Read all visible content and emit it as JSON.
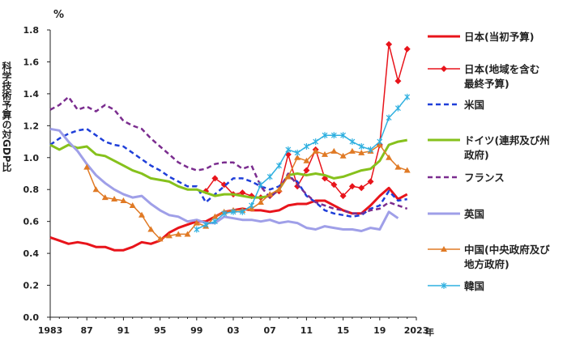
{
  "chart_data": {
    "type": "line",
    "unit_label": "%",
    "year_suffix": "年",
    "ylabel": "科学技術予算の対GDP比",
    "ylim": [
      0,
      1.8
    ],
    "y_ticks": [
      "0.0",
      "0.2",
      "0.4",
      "0.6",
      "0.8",
      "1.0",
      "1.2",
      "1.4",
      "1.6",
      "1.8"
    ],
    "x_range": [
      1983,
      2023
    ],
    "x_ticks": [
      {
        "year": 1983,
        "label": "1983"
      },
      {
        "year": 1987,
        "label": "87"
      },
      {
        "year": 1991,
        "label": "91"
      },
      {
        "year": 1995,
        "label": "95"
      },
      {
        "year": 1999,
        "label": "99"
      },
      {
        "year": 2003,
        "label": "03"
      },
      {
        "year": 2007,
        "label": "07"
      },
      {
        "year": 2011,
        "label": "11"
      },
      {
        "year": 2015,
        "label": "15"
      },
      {
        "year": 2019,
        "label": "19"
      },
      {
        "year": 2023,
        "label": "2023"
      }
    ],
    "grid": false,
    "legend_position": "right",
    "series": [
      {
        "name_lines": [
          "日本(当初予算)"
        ],
        "color": "#e8141b",
        "style": "solid",
        "marker": "none",
        "x": [
          1983,
          1984,
          1985,
          1986,
          1987,
          1988,
          1989,
          1990,
          1991,
          1992,
          1993,
          1994,
          1995,
          1996,
          1997,
          1998,
          1999,
          2000,
          2001,
          2002,
          2003,
          2004,
          2005,
          2006,
          2007,
          2008,
          2009,
          2010,
          2011,
          2012,
          2013,
          2014,
          2015,
          2016,
          2017,
          2018,
          2019,
          2020,
          2021,
          2022
        ],
        "y": [
          0.5,
          0.48,
          0.46,
          0.47,
          0.46,
          0.44,
          0.44,
          0.42,
          0.42,
          0.44,
          0.47,
          0.46,
          0.48,
          0.53,
          0.56,
          0.58,
          0.6,
          0.6,
          0.63,
          0.66,
          0.67,
          0.68,
          0.67,
          0.67,
          0.66,
          0.67,
          0.7,
          0.71,
          0.71,
          0.73,
          0.73,
          0.7,
          0.67,
          0.65,
          0.65,
          0.7,
          0.76,
          0.81,
          0.74,
          0.77
        ]
      },
      {
        "name_lines": [
          "日本(地域を含む",
          "最終予算)"
        ],
        "color": "#e8141b",
        "style": "solid",
        "marker": "diamond",
        "x": [
          2000,
          2001,
          2002,
          2003,
          2004,
          2005,
          2006,
          2007,
          2008,
          2009,
          2010,
          2011,
          2012,
          2013,
          2014,
          2015,
          2016,
          2017,
          2018,
          2019,
          2020,
          2021,
          2022
        ],
        "y": [
          0.79,
          0.87,
          0.83,
          0.77,
          0.78,
          0.76,
          0.75,
          0.76,
          0.79,
          1.02,
          0.82,
          0.92,
          1.05,
          0.87,
          0.83,
          0.76,
          0.82,
          0.81,
          0.85,
          1.08,
          1.71,
          1.48,
          1.68
        ]
      },
      {
        "name_lines": [
          "米国"
        ],
        "color": "#1f3fd9",
        "style": "dashed",
        "marker": "none",
        "x": [
          1983,
          1984,
          1985,
          1986,
          1987,
          1988,
          1989,
          1990,
          1991,
          1992,
          1993,
          1994,
          1995,
          1996,
          1997,
          1998,
          1999,
          2000,
          2001,
          2002,
          2003,
          2004,
          2005,
          2006,
          2007,
          2008,
          2009,
          2010,
          2011,
          2012,
          2013,
          2014,
          2015,
          2016,
          2017,
          2018,
          2019,
          2020,
          2021,
          2022
        ],
        "y": [
          1.08,
          1.12,
          1.15,
          1.17,
          1.18,
          1.14,
          1.1,
          1.08,
          1.07,
          1.03,
          0.99,
          0.95,
          0.92,
          0.88,
          0.85,
          0.82,
          0.82,
          0.72,
          0.77,
          0.82,
          0.87,
          0.87,
          0.85,
          0.82,
          0.8,
          0.82,
          0.88,
          0.85,
          0.76,
          0.72,
          0.67,
          0.65,
          0.64,
          0.63,
          0.64,
          0.68,
          0.7,
          0.79,
          0.73,
          0.74
        ]
      },
      {
        "name_lines": [
          "ドイツ(連邦及び州",
          "政府)"
        ],
        "color": "#86c11c",
        "style": "solid",
        "marker": "none",
        "x": [
          1983,
          1984,
          1985,
          1986,
          1987,
          1988,
          1989,
          1990,
          1991,
          1992,
          1993,
          1994,
          1995,
          1996,
          1997,
          1998,
          1999,
          2000,
          2001,
          2002,
          2003,
          2004,
          2005,
          2006,
          2007,
          2008,
          2009,
          2010,
          2011,
          2012,
          2013,
          2014,
          2015,
          2016,
          2017,
          2018,
          2019,
          2020,
          2021,
          2022
        ],
        "y": [
          1.08,
          1.05,
          1.08,
          1.06,
          1.07,
          1.02,
          1.01,
          0.98,
          0.95,
          0.92,
          0.9,
          0.87,
          0.86,
          0.85,
          0.82,
          0.8,
          0.8,
          0.78,
          0.76,
          0.77,
          0.77,
          0.76,
          0.75,
          0.75,
          0.76,
          0.8,
          0.89,
          0.9,
          0.89,
          0.9,
          0.89,
          0.87,
          0.88,
          0.9,
          0.92,
          0.93,
          0.98,
          1.08,
          1.1,
          1.11
        ]
      },
      {
        "name_lines": [
          "フランス"
        ],
        "color": "#7b2d8f",
        "style": "dashed",
        "marker": "none",
        "x": [
          1983,
          1984,
          1985,
          1986,
          1987,
          1988,
          1989,
          1990,
          1991,
          1992,
          1993,
          1994,
          1995,
          1996,
          1997,
          1998,
          1999,
          2000,
          2001,
          2002,
          2003,
          2004,
          2005,
          2006,
          2007,
          2008,
          2009,
          2010,
          2011,
          2012,
          2013,
          2014,
          2015,
          2016,
          2017,
          2018,
          2019,
          2020,
          2021,
          2022
        ],
        "y": [
          1.3,
          1.33,
          1.38,
          1.3,
          1.32,
          1.29,
          1.33,
          1.3,
          1.23,
          1.2,
          1.18,
          1.12,
          1.07,
          1.02,
          0.97,
          0.94,
          0.92,
          0.93,
          0.96,
          0.97,
          0.97,
          0.93,
          0.95,
          0.82,
          0.75,
          0.8,
          0.9,
          0.83,
          0.77,
          0.72,
          0.7,
          0.68,
          0.67,
          0.65,
          0.65,
          0.67,
          0.68,
          0.72,
          0.7,
          0.68
        ]
      },
      {
        "name_lines": [
          "英国"
        ],
        "color": "#9f9fe8",
        "style": "solid",
        "marker": "none",
        "x": [
          1983,
          1984,
          1985,
          1986,
          1987,
          1988,
          1989,
          1990,
          1991,
          1992,
          1993,
          1994,
          1995,
          1996,
          1997,
          1998,
          1999,
          2000,
          2001,
          2002,
          2003,
          2004,
          2005,
          2006,
          2007,
          2008,
          2009,
          2010,
          2011,
          2012,
          2013,
          2014,
          2015,
          2016,
          2017,
          2018,
          2019,
          2020,
          2021
        ],
        "y": [
          1.18,
          1.17,
          1.1,
          1.04,
          0.96,
          0.89,
          0.84,
          0.8,
          0.77,
          0.75,
          0.76,
          0.71,
          0.67,
          0.64,
          0.63,
          0.6,
          0.61,
          0.59,
          0.59,
          0.63,
          0.62,
          0.61,
          0.61,
          0.6,
          0.61,
          0.59,
          0.6,
          0.59,
          0.56,
          0.55,
          0.57,
          0.56,
          0.55,
          0.55,
          0.54,
          0.56,
          0.55,
          0.66,
          0.62
        ]
      },
      {
        "name_lines": [
          "中国(中央政府及び",
          "地方政府)"
        ],
        "color": "#e07a25",
        "style": "solid",
        "marker": "triangle",
        "x": [
          1987,
          1988,
          1989,
          1990,
          1991,
          1992,
          1993,
          1994,
          1995,
          1996,
          1997,
          1998,
          1999,
          2000,
          2001,
          2002,
          2003,
          2004,
          2005,
          2006,
          2007,
          2008,
          2009,
          2010,
          2011,
          2012,
          2013,
          2014,
          2015,
          2016,
          2017,
          2018,
          2019,
          2020,
          2021,
          2022
        ],
        "y": [
          0.94,
          0.8,
          0.75,
          0.74,
          0.73,
          0.7,
          0.64,
          0.55,
          0.49,
          0.51,
          0.52,
          0.52,
          0.59,
          0.57,
          0.63,
          0.66,
          0.67,
          0.67,
          0.68,
          0.72,
          0.77,
          0.8,
          0.88,
          1.0,
          0.98,
          1.04,
          1.02,
          1.04,
          1.01,
          1.04,
          1.03,
          1.04,
          1.08,
          1.0,
          0.94,
          0.92
        ]
      },
      {
        "name_lines": [
          "韓国"
        ],
        "color": "#2fb0e0",
        "style": "solid",
        "marker": "x",
        "x": [
          1999,
          2000,
          2001,
          2002,
          2003,
          2004,
          2005,
          2006,
          2007,
          2008,
          2009,
          2010,
          2011,
          2012,
          2013,
          2014,
          2015,
          2016,
          2017,
          2018,
          2019,
          2020,
          2021,
          2022
        ],
        "y": [
          0.55,
          0.58,
          0.6,
          0.65,
          0.66,
          0.66,
          0.7,
          0.83,
          0.88,
          0.95,
          1.05,
          1.03,
          1.07,
          1.1,
          1.14,
          1.14,
          1.14,
          1.1,
          1.07,
          1.05,
          1.1,
          1.25,
          1.31,
          1.38
        ]
      }
    ]
  }
}
